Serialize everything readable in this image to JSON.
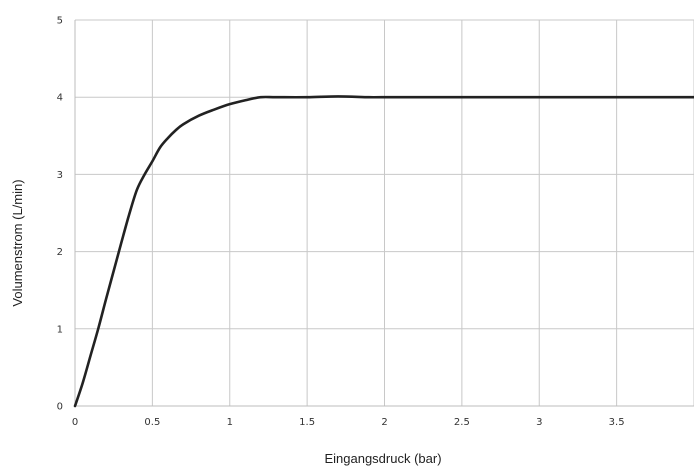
{
  "chart_data": {
    "type": "line",
    "title": "",
    "xlabel": "Eingangsdruck (bar)",
    "ylabel": "Volumenstrom (L/min)",
    "xlim": [
      0,
      4
    ],
    "ylim": [
      0,
      5
    ],
    "xticks": [
      0,
      0.5,
      1,
      1.5,
      2,
      2.5,
      3,
      3.5,
      4
    ],
    "xtick_labels": [
      "0",
      "0.5",
      "1",
      "1.5",
      "2",
      "2.5",
      "3",
      "3.5",
      ""
    ],
    "yticks": [
      0,
      1,
      2,
      3,
      4,
      5
    ],
    "ytick_labels": [
      "0",
      "1",
      "2",
      "3",
      "4",
      "5"
    ],
    "grid": true,
    "legend": "none",
    "series": [
      {
        "color": "#222222",
        "x": [
          0,
          0.05,
          0.1,
          0.15,
          0.2,
          0.25,
          0.3,
          0.35,
          0.4,
          0.45,
          0.5,
          0.55,
          0.6,
          0.65,
          0.7,
          0.8,
          0.9,
          1.0,
          1.1,
          1.2,
          1.3,
          1.5,
          1.7,
          1.9,
          2.0,
          2.5,
          3.0,
          3.5,
          4.0
        ],
        "y": [
          0,
          0.3,
          0.65,
          1.0,
          1.38,
          1.75,
          2.12,
          2.48,
          2.8,
          3.0,
          3.17,
          3.35,
          3.47,
          3.57,
          3.65,
          3.76,
          3.84,
          3.91,
          3.96,
          4.0,
          4.0,
          4.0,
          4.01,
          4.0,
          4.0,
          4.0,
          4.0,
          4.0,
          4.0
        ]
      }
    ]
  }
}
